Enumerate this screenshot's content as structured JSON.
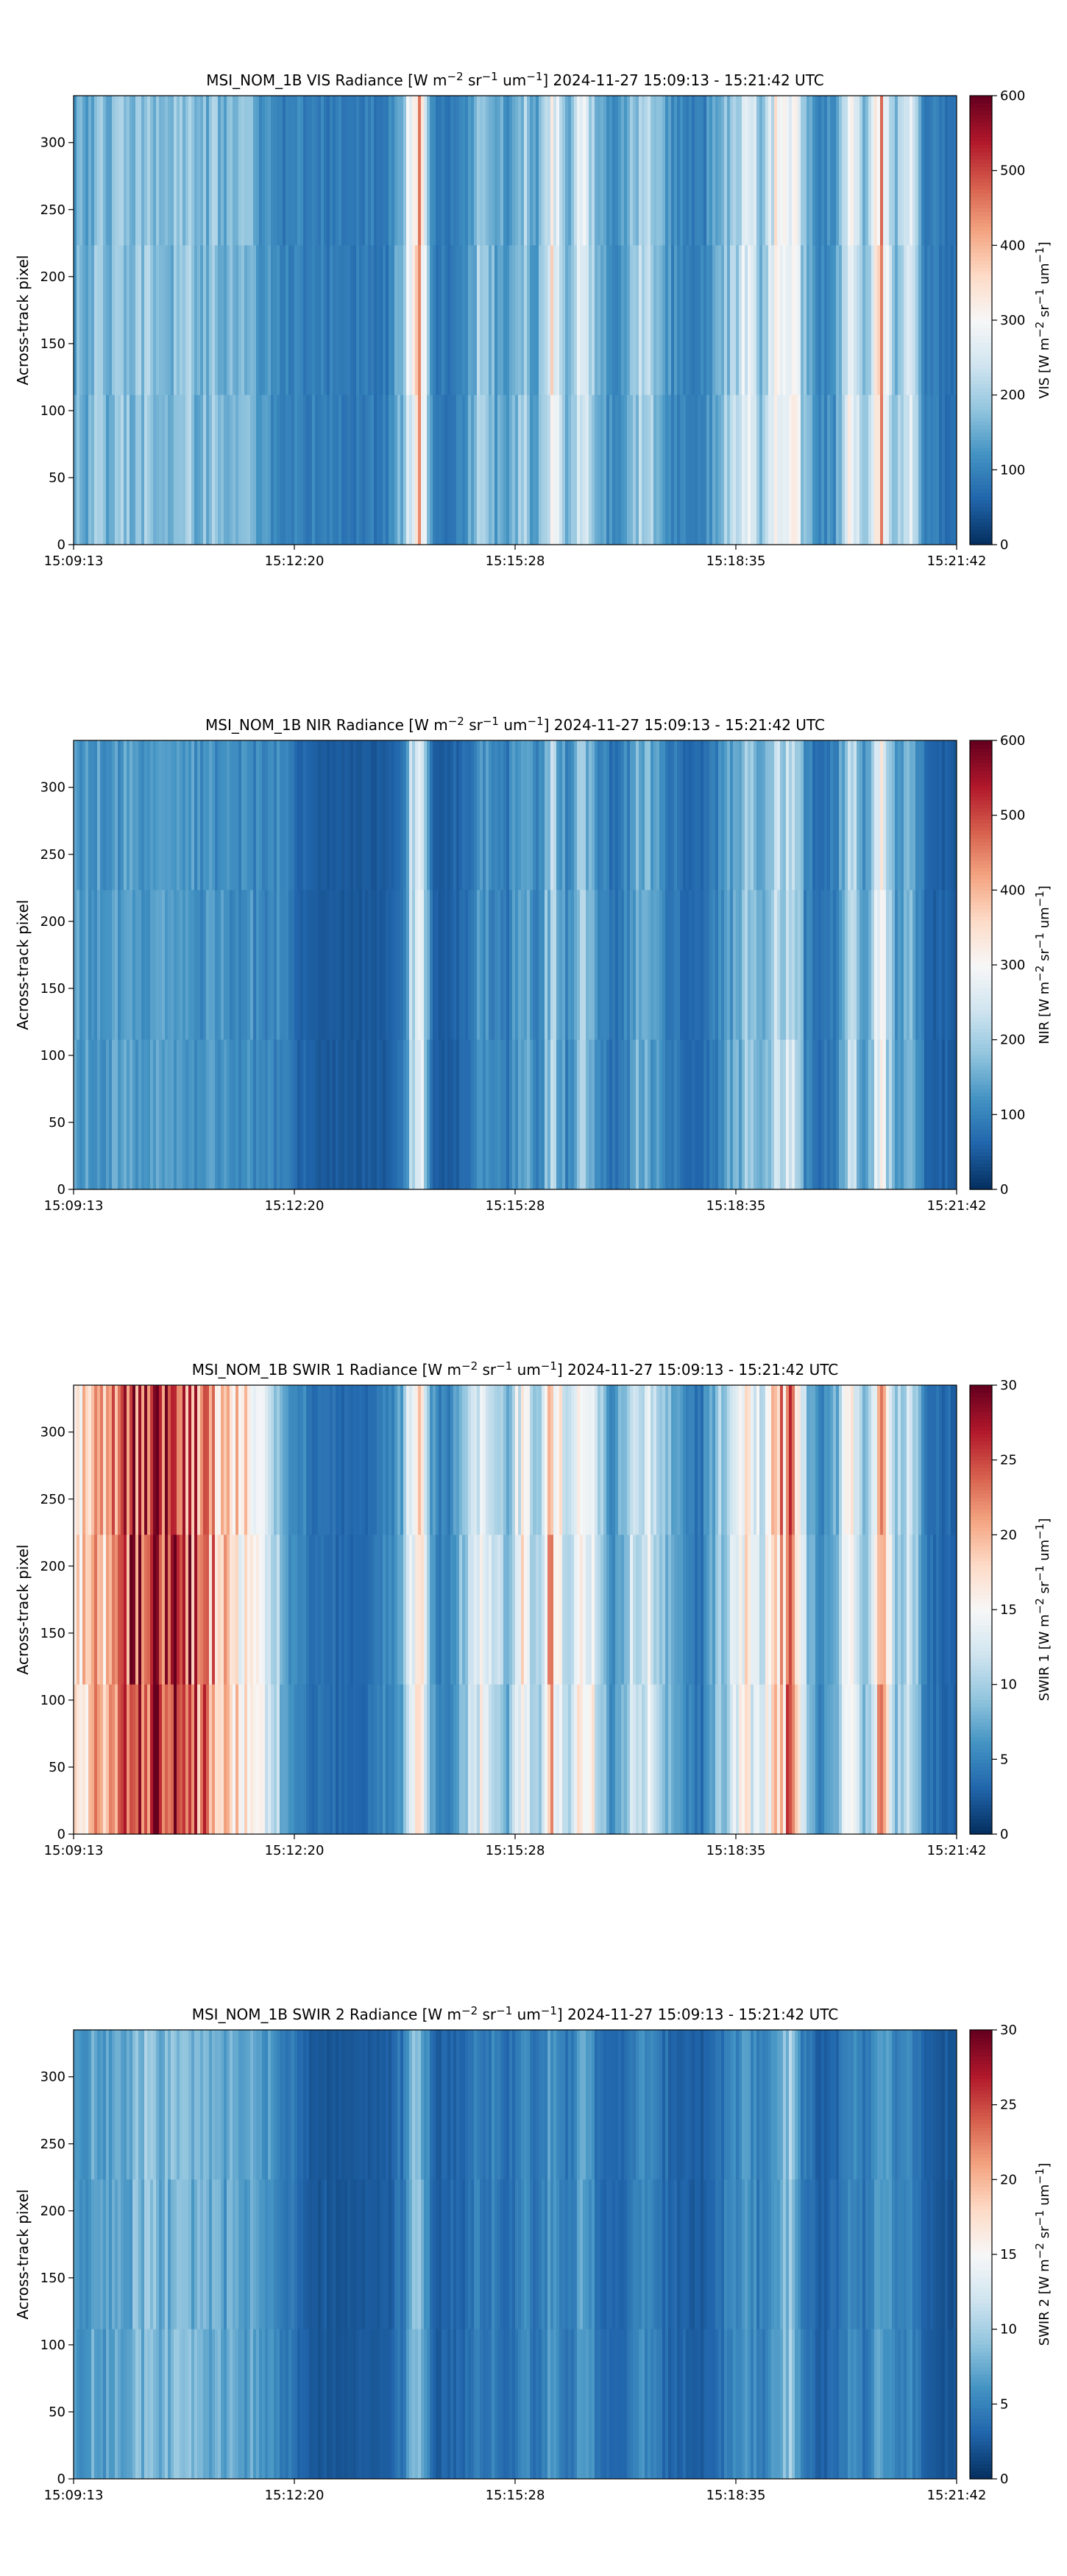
{
  "chart_data": [
    {
      "type": "heatmap",
      "title": {
        "prefix": "MSI_NOM_1B VIS Radiance [W m",
        "e1": "−2",
        "mid1": " sr",
        "e2": "−1",
        "mid2": " um",
        "e3": "−1",
        "suffix": "]    2024-11-27    15:09:13 - 15:21:42 UTC"
      },
      "ylabel": "Across-track pixel",
      "xticks": [
        "15:09:13",
        "15:12:20",
        "15:15:28",
        "15:18:35",
        "15:21:42"
      ],
      "yticks": [
        "0",
        "50",
        "100",
        "150",
        "200",
        "250",
        "300"
      ],
      "ylim": [
        0,
        335
      ],
      "colorbar": {
        "label": {
          "prefix": "VIS [W m",
          "e1": "−2",
          "mid1": " sr",
          "e2": "−1",
          "mid2": " um",
          "e3": "−1",
          "suffix": "]"
        },
        "ticks": [
          "0",
          "100",
          "200",
          "300",
          "400",
          "500",
          "600"
        ],
        "range": [
          0,
          600
        ],
        "colormap": "RdBu_r"
      },
      "profile": [
        150,
        160,
        165,
        170,
        168,
        172,
        175,
        170,
        168,
        165,
        160,
        150,
        140,
        120,
        100,
        95,
        92,
        90,
        88,
        85,
        90,
        95,
        180,
        420,
        90,
        85,
        95,
        180,
        160,
        110,
        200,
        120,
        300,
        150,
        260,
        180,
        100,
        140,
        220,
        180,
        110,
        95,
        90,
        150,
        200,
        250,
        180,
        300,
        350,
        150,
        95,
        120,
        320,
        140,
        400,
        180,
        250,
        90,
        85,
        80
      ]
    },
    {
      "type": "heatmap",
      "title": {
        "prefix": "MSI_NOM_1B NIR Radiance [W m",
        "e1": "−2",
        "mid1": " sr",
        "e2": "−1",
        "mid2": " um",
        "e3": "−1",
        "suffix": "]    2024-11-27    15:09:13 - 15:21:42 UTC"
      },
      "ylabel": "Across-track pixel",
      "xticks": [
        "15:09:13",
        "15:12:20",
        "15:15:28",
        "15:18:35",
        "15:21:42"
      ],
      "yticks": [
        "0",
        "50",
        "100",
        "150",
        "200",
        "250",
        "300"
      ],
      "ylim": [
        0,
        335
      ],
      "colorbar": {
        "label": {
          "prefix": "NIR [W m",
          "e1": "−2",
          "mid1": " sr",
          "e2": "−1",
          "mid2": " um",
          "e3": "−1",
          "suffix": "]"
        },
        "ticks": [
          "0",
          "100",
          "200",
          "300",
          "400",
          "500",
          "600"
        ],
        "range": [
          0,
          600
        ],
        "colormap": "RdBu_r"
      },
      "profile": [
        120,
        125,
        130,
        128,
        132,
        130,
        126,
        124,
        120,
        118,
        115,
        112,
        110,
        108,
        105,
        60,
        50,
        48,
        45,
        44,
        46,
        48,
        90,
        300,
        55,
        50,
        60,
        120,
        110,
        80,
        150,
        90,
        200,
        100,
        180,
        130,
        70,
        100,
        160,
        120,
        80,
        70,
        60,
        100,
        140,
        180,
        120,
        200,
        240,
        100,
        70,
        90,
        220,
        100,
        280,
        130,
        170,
        60,
        55,
        50
      ]
    },
    {
      "type": "heatmap",
      "title": {
        "prefix": "MSI_NOM_1B SWIR 1 Radiance [W m",
        "e1": "−2",
        "mid1": " sr",
        "e2": "−1",
        "mid2": " um",
        "e3": "−1",
        "suffix": "]    2024-11-27    15:09:13 - 15:21:42 UTC"
      },
      "ylabel": "Across-track pixel",
      "xticks": [
        "15:09:13",
        "15:12:20",
        "15:15:28",
        "15:18:35",
        "15:21:42"
      ],
      "yticks": [
        "0",
        "50",
        "100",
        "150",
        "200",
        "250",
        "300"
      ],
      "ylim": [
        0,
        335
      ],
      "colorbar": {
        "label": {
          "prefix": "SWIR 1 [W m",
          "e1": "−2",
          "mid1": " sr",
          "e2": "−1",
          "mid2": " um",
          "e3": "−1",
          "suffix": "]"
        },
        "ticks": [
          "0",
          "5",
          "10",
          "15",
          "20",
          "25",
          "30"
        ],
        "range": [
          0,
          30
        ],
        "colormap": "RdBu_r"
      },
      "profile": [
        16,
        18,
        20,
        22,
        25,
        27,
        26,
        24,
        23,
        21,
        19,
        17,
        15,
        12,
        8,
        5,
        4,
        3.5,
        3,
        3.2,
        4,
        5,
        8,
        18,
        6,
        5,
        8,
        14,
        12,
        7,
        16,
        9,
        20,
        10,
        18,
        12,
        6,
        9,
        14,
        11,
        7,
        5,
        4,
        9,
        12,
        16,
        11,
        18,
        22,
        10,
        5,
        7,
        15,
        8,
        20,
        9,
        13,
        4,
        3.5,
        3
      ]
    },
    {
      "type": "heatmap",
      "title": {
        "prefix": "MSI_NOM_1B SWIR 2 Radiance [W m",
        "e1": "−2",
        "mid1": " sr",
        "e2": "−1",
        "mid2": " um",
        "e3": "−1",
        "suffix": "]    2024-11-27    15:09:13 - 15:21:42 UTC"
      },
      "ylabel": "Across-track pixel",
      "xticks": [
        "15:09:13",
        "15:12:20",
        "15:15:28",
        "15:18:35",
        "15:21:42"
      ],
      "yticks": [
        "0",
        "50",
        "100",
        "150",
        "200",
        "250",
        "300"
      ],
      "ylim": [
        0,
        335
      ],
      "colorbar": {
        "label": {
          "prefix": "SWIR 2 [W m",
          "e1": "−2",
          "mid1": " sr",
          "e2": "−1",
          "mid2": " um",
          "e3": "−1",
          "suffix": "]"
        },
        "ticks": [
          "0",
          "5",
          "10",
          "15",
          "20",
          "25",
          "30"
        ],
        "range": [
          0,
          30
        ],
        "colormap": "RdBu_r"
      },
      "profile": [
        6,
        6.5,
        7,
        7.5,
        8,
        8.5,
        8.2,
        8,
        7.8,
        7.5,
        7,
        6.8,
        6.5,
        6,
        5,
        3,
        2.5,
        2.2,
        2,
        2.1,
        2.3,
        2.5,
        4,
        10,
        3,
        2.8,
        3.2,
        5,
        4.5,
        3,
        5.5,
        3.5,
        7,
        4,
        6.5,
        4.5,
        2.8,
        3.5,
        5.5,
        4.2,
        3,
        2.6,
        2.4,
        3.8,
        5,
        6.5,
        4.5,
        7.5,
        8.5,
        4,
        2.6,
        3.2,
        6,
        3.5,
        7.5,
        4,
        5,
        2.4,
        2.2,
        2
      ]
    }
  ]
}
